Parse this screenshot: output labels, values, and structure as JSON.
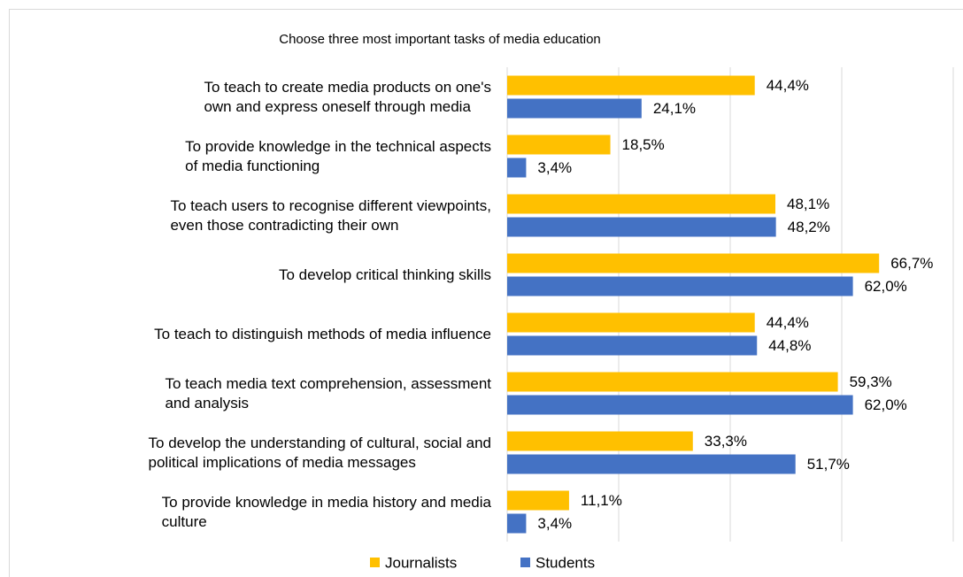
{
  "chart_data": {
    "type": "barh",
    "title": "Choose three most important tasks of media education",
    "categories": [
      "To teach to create media products on one's\nown and express oneself through media",
      "To provide knowledge in the technical aspects\nof media functioning",
      "To teach users to recognise different viewpoints,\neven those contradicting their own",
      "To develop critical thinking skills",
      "To teach to distinguish methods of media influence",
      "To teach media text comprehension, assessment\nand analysis",
      "To develop the understanding of cultural, social and\npolitical implications of media messages",
      "To provide knowledge in media history and media\nculture"
    ],
    "series": [
      {
        "name": "Journalists",
        "color": "#ffc000",
        "values": [
          44.4,
          18.5,
          48.1,
          66.7,
          44.4,
          59.3,
          33.3,
          11.1
        ],
        "value_labels": [
          "44,4%",
          "18,5%",
          "48,1%",
          "66,7%",
          "44,4%",
          "59,3%",
          "33,3%",
          "11,1%"
        ]
      },
      {
        "name": "Students",
        "color": "#4472c4",
        "values": [
          24.1,
          3.4,
          48.2,
          62.0,
          44.8,
          62.0,
          51.7,
          3.4
        ],
        "value_labels": [
          "24,1%",
          "3,4%",
          "48,2%",
          "62,0%",
          "44,8%",
          "62,0%",
          "51,7%",
          "3,4%"
        ]
      }
    ],
    "xlim": [
      0,
      80
    ],
    "xticks": [
      0,
      20,
      40,
      60,
      80
    ],
    "grid": true,
    "legend": "bottom"
  }
}
